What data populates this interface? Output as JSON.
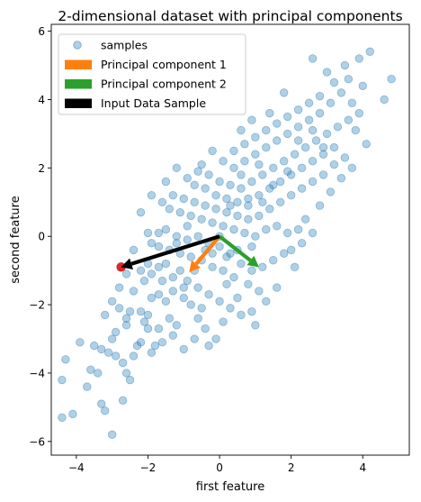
{
  "chart_data": {
    "type": "scatter",
    "title": "2-dimensional dataset with principal components",
    "xlabel": "first feature",
    "ylabel": "second feature",
    "xlim": [
      -4.7,
      5.3
    ],
    "ylim": [
      -6.4,
      6.2
    ],
    "xticks": [
      -4,
      -2,
      0,
      2,
      4
    ],
    "yticks": [
      -6,
      -4,
      -2,
      0,
      2,
      4,
      6
    ],
    "grid": false,
    "legend_position": "top-left",
    "legend": [
      {
        "label": "samples",
        "kind": "marker",
        "color": "#1f77b4"
      },
      {
        "label": "Principal component 1",
        "kind": "patch",
        "color": "#ff7f0e"
      },
      {
        "label": "Principal component 2",
        "kind": "patch",
        "color": "#2ca02c"
      },
      {
        "label": "Input Data Sample",
        "kind": "patch",
        "color": "#000000"
      }
    ],
    "series": [
      {
        "name": "samples",
        "color": "#1f77b4",
        "alpha": 0.35,
        "points": [
          [
            -4.4,
            -5.3
          ],
          [
            -4.1,
            -5.2
          ],
          [
            -3.0,
            -5.8
          ],
          [
            -3.2,
            -5.1
          ],
          [
            -3.3,
            -4.9
          ],
          [
            -2.7,
            -4.8
          ],
          [
            -2.5,
            -4.2
          ],
          [
            -2.6,
            -4.0
          ],
          [
            -3.4,
            -4.0
          ],
          [
            -3.6,
            -3.9
          ],
          [
            -3.7,
            -4.4
          ],
          [
            -4.3,
            -3.6
          ],
          [
            -4.4,
            -4.2
          ],
          [
            -3.9,
            -3.1
          ],
          [
            -3.5,
            -3.2
          ],
          [
            -3.3,
            -3.3
          ],
          [
            -3.1,
            -3.4
          ],
          [
            -2.9,
            -3.5
          ],
          [
            -2.7,
            -3.7
          ],
          [
            -3.0,
            -3.0
          ],
          [
            -2.9,
            -2.8
          ],
          [
            -2.6,
            -2.4
          ],
          [
            -2.6,
            -2.6
          ],
          [
            -2.3,
            -3.2
          ],
          [
            -2.1,
            -2.5
          ],
          [
            -1.8,
            -3.2
          ],
          [
            -1.6,
            -3.1
          ],
          [
            -1.7,
            -2.7
          ],
          [
            -2.0,
            -2.7
          ],
          [
            -2.2,
            -3.1
          ],
          [
            -2.8,
            -2.1
          ],
          [
            -2.5,
            -2.2
          ],
          [
            -2.2,
            -2.2
          ],
          [
            -2.0,
            -2.3
          ],
          [
            -1.9,
            -1.8
          ],
          [
            -2.4,
            -1.6
          ],
          [
            -2.1,
            -1.3
          ],
          [
            -1.9,
            -1.1
          ],
          [
            -2.2,
            -1.0
          ],
          [
            -2.0,
            -0.8
          ],
          [
            -1.7,
            -1.7
          ],
          [
            -1.5,
            -1.9
          ],
          [
            -1.4,
            -2.4
          ],
          [
            -1.2,
            -2.6
          ],
          [
            -1.0,
            -3.3
          ],
          [
            -0.7,
            -3.0
          ],
          [
            -0.3,
            -3.2
          ],
          [
            -0.1,
            -3.0
          ],
          [
            0.1,
            -2.5
          ],
          [
            -0.4,
            -2.7
          ],
          [
            -0.5,
            -2.1
          ],
          [
            -0.8,
            -2.0
          ],
          [
            -1.0,
            -1.8
          ],
          [
            -1.3,
            -1.6
          ],
          [
            -1.6,
            -1.3
          ],
          [
            -1.7,
            -0.9
          ],
          [
            -1.5,
            -0.8
          ],
          [
            -1.3,
            -1.2
          ],
          [
            -1.1,
            -1.0
          ],
          [
            -0.9,
            -1.3
          ],
          [
            -0.6,
            -1.5
          ],
          [
            -0.3,
            -1.7
          ],
          [
            0.0,
            -1.9
          ],
          [
            0.3,
            -2.1
          ],
          [
            0.6,
            -2.3
          ],
          [
            0.9,
            -2.2
          ],
          [
            1.3,
            -1.9
          ],
          [
            1.1,
            -1.6
          ],
          [
            0.8,
            -1.4
          ],
          [
            0.4,
            -1.2
          ],
          [
            0.1,
            -1.0
          ],
          [
            -0.2,
            -0.9
          ],
          [
            -0.5,
            -0.7
          ],
          [
            -0.8,
            -0.6
          ],
          [
            -1.1,
            -0.5
          ],
          [
            -1.4,
            -0.4
          ],
          [
            -1.7,
            -0.3
          ],
          [
            -1.9,
            -0.2
          ],
          [
            -2.0,
            0.1
          ],
          [
            -1.7,
            0.1
          ],
          [
            -1.5,
            0.2
          ],
          [
            -1.2,
            0.0
          ],
          [
            -0.9,
            -0.1
          ],
          [
            -0.6,
            0.0
          ],
          [
            -0.3,
            -0.2
          ],
          [
            0.0,
            -0.3
          ],
          [
            0.3,
            -0.5
          ],
          [
            0.6,
            -0.8
          ],
          [
            0.9,
            -1.0
          ],
          [
            1.2,
            -0.9
          ],
          [
            1.5,
            -0.7
          ],
          [
            1.8,
            -0.5
          ],
          [
            2.0,
            -0.4
          ],
          [
            2.3,
            -0.2
          ],
          [
            2.6,
            0.1
          ],
          [
            2.2,
            0.2
          ],
          [
            1.9,
            0.1
          ],
          [
            1.6,
            0.3
          ],
          [
            1.3,
            0.2
          ],
          [
            1.0,
            0.0
          ],
          [
            0.7,
            0.1
          ],
          [
            0.4,
            0.2
          ],
          [
            0.1,
            0.3
          ],
          [
            -0.2,
            0.4
          ],
          [
            -0.5,
            0.5
          ],
          [
            -0.8,
            0.6
          ],
          [
            -1.1,
            0.7
          ],
          [
            -1.4,
            0.8
          ],
          [
            -1.6,
            1.0
          ],
          [
            -1.3,
            1.2
          ],
          [
            -1.0,
            1.1
          ],
          [
            -0.7,
            1.0
          ],
          [
            -0.4,
            0.9
          ],
          [
            -0.1,
            0.8
          ],
          [
            0.2,
            0.7
          ],
          [
            0.5,
            0.6
          ],
          [
            0.8,
            0.5
          ],
          [
            1.1,
            0.6
          ],
          [
            1.4,
            0.8
          ],
          [
            1.7,
            1.0
          ],
          [
            2.0,
            1.2
          ],
          [
            2.3,
            1.4
          ],
          [
            2.6,
            1.6
          ],
          [
            2.9,
            1.8
          ],
          [
            3.2,
            2.1
          ],
          [
            3.5,
            2.3
          ],
          [
            3.2,
            2.6
          ],
          [
            2.9,
            2.4
          ],
          [
            2.6,
            2.2
          ],
          [
            2.3,
            2.0
          ],
          [
            2.0,
            1.8
          ],
          [
            1.7,
            1.6
          ],
          [
            1.4,
            1.4
          ],
          [
            1.1,
            1.2
          ],
          [
            0.8,
            1.1
          ],
          [
            0.5,
            1.0
          ],
          [
            0.2,
            1.1
          ],
          [
            -0.1,
            1.2
          ],
          [
            -0.4,
            1.4
          ],
          [
            -0.7,
            1.5
          ],
          [
            -0.9,
            1.7
          ],
          [
            -0.6,
            1.9
          ],
          [
            -0.3,
            1.8
          ],
          [
            0.0,
            1.6
          ],
          [
            0.3,
            1.5
          ],
          [
            0.6,
            1.4
          ],
          [
            0.9,
            1.6
          ],
          [
            1.2,
            1.8
          ],
          [
            1.5,
            2.0
          ],
          [
            1.8,
            2.2
          ],
          [
            2.1,
            2.4
          ],
          [
            2.4,
            2.6
          ],
          [
            2.7,
            2.8
          ],
          [
            3.0,
            3.0
          ],
          [
            3.3,
            3.2
          ],
          [
            3.6,
            3.4
          ],
          [
            3.9,
            3.6
          ],
          [
            3.7,
            3.9
          ],
          [
            3.4,
            4.2
          ],
          [
            3.1,
            3.9
          ],
          [
            2.8,
            3.6
          ],
          [
            2.5,
            3.4
          ],
          [
            2.2,
            3.2
          ],
          [
            1.9,
            3.0
          ],
          [
            1.6,
            2.8
          ],
          [
            1.3,
            2.6
          ],
          [
            1.0,
            2.4
          ],
          [
            0.7,
            2.2
          ],
          [
            0.4,
            2.0
          ],
          [
            0.1,
            2.2
          ],
          [
            0.4,
            2.5
          ],
          [
            0.7,
            2.7
          ],
          [
            1.0,
            2.9
          ],
          [
            1.3,
            3.1
          ],
          [
            1.6,
            3.3
          ],
          [
            1.9,
            3.5
          ],
          [
            2.2,
            3.7
          ],
          [
            2.5,
            3.9
          ],
          [
            2.8,
            4.1
          ],
          [
            3.2,
            4.5
          ],
          [
            3.6,
            4.6
          ],
          [
            4.0,
            4.4
          ],
          [
            4.2,
            5.4
          ],
          [
            3.9,
            5.2
          ],
          [
            3.5,
            5.0
          ],
          [
            3.0,
            4.8
          ],
          [
            2.6,
            5.2
          ],
          [
            4.6,
            4.0
          ],
          [
            4.8,
            4.6
          ],
          [
            1.8,
            4.2
          ],
          [
            0.9,
            3.4
          ],
          [
            0.6,
            3.1
          ],
          [
            1.4,
            3.6
          ],
          [
            -0.2,
            2.5
          ],
          [
            -0.5,
            2.1
          ],
          [
            -1.2,
            2.0
          ],
          [
            -1.5,
            1.6
          ],
          [
            -1.9,
            1.2
          ],
          [
            -2.2,
            0.7
          ],
          [
            -2.4,
            -0.4
          ],
          [
            -2.6,
            -1.1
          ],
          [
            -2.8,
            -1.5
          ],
          [
            -3.0,
            -1.9
          ],
          [
            -3.2,
            -2.3
          ],
          [
            -2.4,
            -3.5
          ],
          [
            -1.9,
            -3.4
          ],
          [
            -1.3,
            -2.9
          ],
          [
            -0.6,
            -2.4
          ],
          [
            0.2,
            -1.4
          ],
          [
            0.5,
            -1.8
          ],
          [
            1.0,
            -2.6
          ],
          [
            1.6,
            -1.5
          ],
          [
            2.1,
            -0.9
          ],
          [
            2.4,
            0.5
          ],
          [
            2.8,
            0.9
          ],
          [
            3.1,
            1.3
          ],
          [
            3.4,
            1.7
          ],
          [
            3.7,
            2.0
          ],
          [
            4.1,
            2.7
          ],
          [
            3.8,
            3.1
          ],
          [
            0.0,
            0.0
          ],
          [
            -0.2,
            -0.5
          ],
          [
            0.5,
            -0.4
          ],
          [
            0.8,
            0.9
          ],
          [
            1.2,
            1.0
          ],
          [
            -0.7,
            -1.0
          ],
          [
            -1.0,
            -1.5
          ],
          [
            0.3,
            0.9
          ],
          [
            0.6,
            1.8
          ],
          [
            1.1,
            2.1
          ],
          [
            1.5,
            1.5
          ],
          [
            1.9,
            1.9
          ],
          [
            2.2,
            2.8
          ],
          [
            2.6,
            3.1
          ],
          [
            2.9,
            2.6
          ],
          [
            -0.4,
            -0.4
          ],
          [
            -0.9,
            0.3
          ],
          [
            -1.2,
            -0.2
          ],
          [
            0.2,
            -0.6
          ],
          [
            0.9,
            -0.3
          ]
        ]
      }
    ],
    "principal_components": [
      {
        "name": "Principal component 1",
        "color": "#ff7f0e",
        "start": [
          0,
          0
        ],
        "end": [
          -0.85,
          -1.05
        ]
      },
      {
        "name": "Principal component 2",
        "color": "#2ca02c",
        "start": [
          0,
          0
        ],
        "end": [
          1.1,
          -0.9
        ]
      },
      {
        "name": "Input Data Sample",
        "color": "#000000",
        "start": [
          0,
          0
        ],
        "end": [
          -2.75,
          -0.9
        ]
      }
    ],
    "highlight_point": {
      "x": -2.75,
      "y": -0.9,
      "color": "#d62728"
    }
  }
}
